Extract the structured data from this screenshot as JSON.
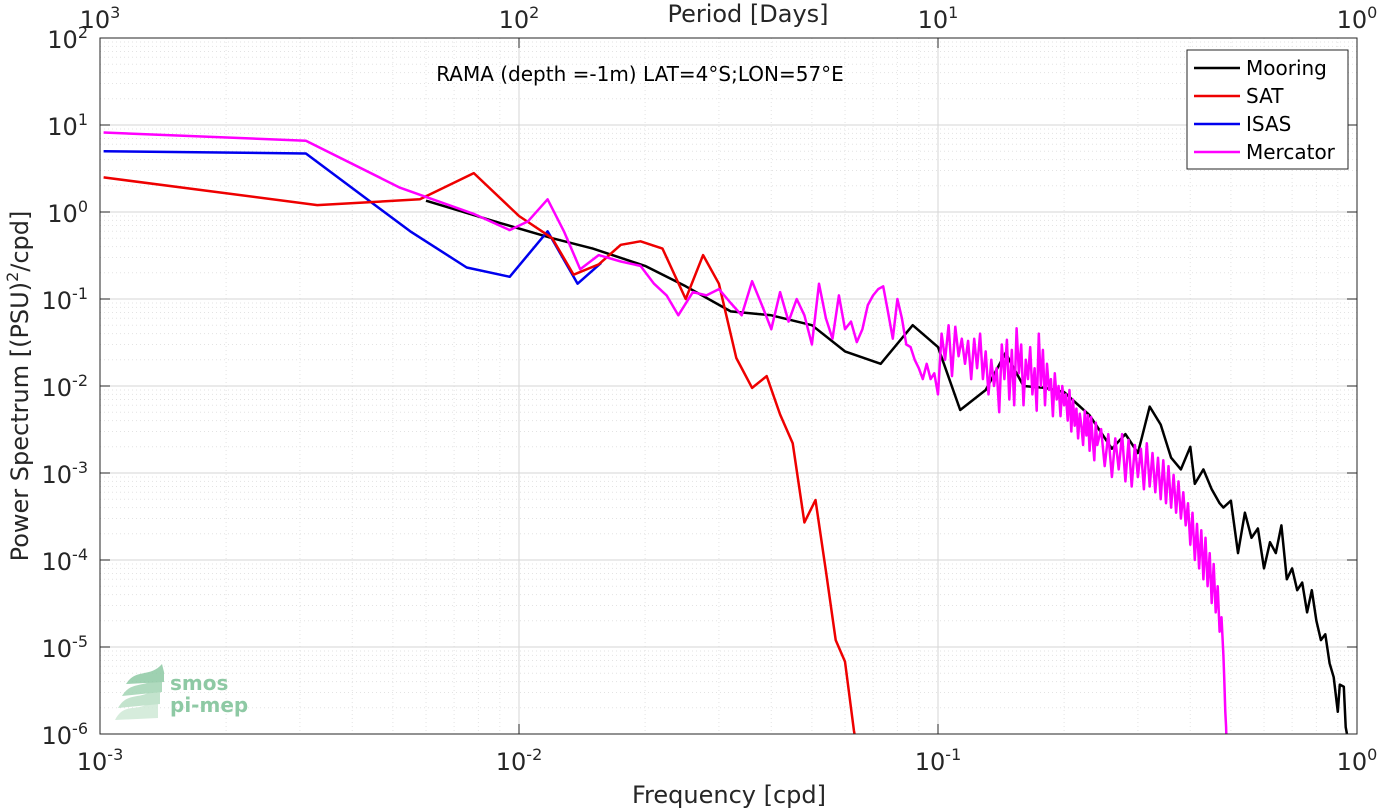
{
  "chart_data": {
    "type": "line",
    "title": "RAMA (depth =-1m) LAT=4°S;LON=57°E",
    "xlabel": "Frequency [cpd]",
    "ylabel_pre": "Power Spectrum [(PSU)",
    "ylabel_sup": "2",
    "ylabel_post": "/cpd]",
    "top_xlabel": "Period [Days]",
    "x_scale": "log",
    "y_scale": "log",
    "xlim": [
      0.001,
      1
    ],
    "ylim": [
      1e-06,
      100
    ],
    "grid": true,
    "legend_placement": "top-right",
    "x_ticks": [
      {
        "value": 0.001,
        "base": "10",
        "exp": "-3"
      },
      {
        "value": 0.01,
        "base": "10",
        "exp": "-2"
      },
      {
        "value": 0.1,
        "base": "10",
        "exp": "-1"
      },
      {
        "value": 1,
        "base": "10",
        "exp": "0"
      }
    ],
    "top_ticks": [
      {
        "value": 0.001,
        "base": "10",
        "exp": "3"
      },
      {
        "value": 0.01,
        "base": "10",
        "exp": "2"
      },
      {
        "value": 0.1,
        "base": "10",
        "exp": "1"
      },
      {
        "value": 1,
        "base": "10",
        "exp": "0"
      }
    ],
    "y_ticks": [
      {
        "value": 1e-06,
        "base": "10",
        "exp": "-6"
      },
      {
        "value": 1e-05,
        "base": "10",
        "exp": "-5"
      },
      {
        "value": 0.0001,
        "base": "10",
        "exp": "-4"
      },
      {
        "value": 0.001,
        "base": "10",
        "exp": "-3"
      },
      {
        "value": 0.01,
        "base": "10",
        "exp": "-2"
      },
      {
        "value": 0.1,
        "base": "10",
        "exp": "-1"
      },
      {
        "value": 1,
        "base": "10",
        "exp": "0"
      },
      {
        "value": 10,
        "base": "10",
        "exp": "1"
      },
      {
        "value": 100,
        "base": "10",
        "exp": "2"
      }
    ],
    "series": [
      {
        "name": "Mooring",
        "color": "#000000",
        "points": [
          [
            0.006,
            1.35
          ],
          [
            0.009,
            0.75
          ],
          [
            0.012,
            0.5
          ],
          [
            0.015,
            0.38
          ],
          [
            0.02,
            0.24
          ],
          [
            0.025,
            0.14
          ],
          [
            0.032,
            0.072
          ],
          [
            0.04,
            0.065
          ],
          [
            0.05,
            0.05
          ],
          [
            0.06,
            0.025
          ],
          [
            0.073,
            0.018
          ],
          [
            0.087,
            0.05
          ],
          [
            0.1,
            0.028
          ],
          [
            0.113,
            0.0053
          ],
          [
            0.13,
            0.009
          ],
          [
            0.145,
            0.024
          ],
          [
            0.16,
            0.01
          ],
          [
            0.18,
            0.0095
          ],
          [
            0.2,
            0.0085
          ],
          [
            0.23,
            0.0046
          ],
          [
            0.26,
            0.0019
          ],
          [
            0.28,
            0.0028
          ],
          [
            0.3,
            0.0017
          ],
          [
            0.32,
            0.0058
          ],
          [
            0.34,
            0.0036
          ],
          [
            0.36,
            0.0015
          ],
          [
            0.38,
            0.0011
          ],
          [
            0.4,
            0.002
          ],
          [
            0.41,
            0.00075
          ],
          [
            0.43,
            0.0011
          ],
          [
            0.45,
            0.00065
          ],
          [
            0.47,
            0.00045
          ],
          [
            0.48,
            0.0004
          ],
          [
            0.5,
            0.00048
          ],
          [
            0.52,
            0.00012
          ],
          [
            0.54,
            0.00035
          ],
          [
            0.56,
            0.00018
          ],
          [
            0.58,
            0.00023
          ],
          [
            0.6,
            8e-05
          ],
          [
            0.62,
            0.00016
          ],
          [
            0.64,
            0.00012
          ],
          [
            0.66,
            0.00025
          ],
          [
            0.68,
            6e-05
          ],
          [
            0.7,
            8e-05
          ],
          [
            0.72,
            4.5e-05
          ],
          [
            0.74,
            5.5e-05
          ],
          [
            0.76,
            2.5e-05
          ],
          [
            0.78,
            4.5e-05
          ],
          [
            0.8,
            2e-05
          ],
          [
            0.82,
            1.2e-05
          ],
          [
            0.84,
            1.4e-05
          ],
          [
            0.86,
            6.5e-06
          ],
          [
            0.88,
            4.5e-06
          ],
          [
            0.9,
            1.8e-06
          ],
          [
            0.91,
            3.7e-06
          ],
          [
            0.93,
            3.5e-06
          ],
          [
            0.94,
            1.2e-06
          ],
          [
            0.95,
            9e-07
          ]
        ]
      },
      {
        "name": "SAT",
        "color": "#ee0000",
        "points": [
          [
            0.00102,
            2.5
          ],
          [
            0.0033,
            1.2
          ],
          [
            0.0058,
            1.4
          ],
          [
            0.0078,
            2.8
          ],
          [
            0.01,
            0.9
          ],
          [
            0.012,
            0.5
          ],
          [
            0.0135,
            0.19
          ],
          [
            0.0155,
            0.25
          ],
          [
            0.0175,
            0.42
          ],
          [
            0.0195,
            0.46
          ],
          [
            0.022,
            0.38
          ],
          [
            0.025,
            0.1
          ],
          [
            0.0275,
            0.32
          ],
          [
            0.03,
            0.15
          ],
          [
            0.033,
            0.021
          ],
          [
            0.036,
            0.0095
          ],
          [
            0.039,
            0.013
          ],
          [
            0.042,
            0.0047
          ],
          [
            0.045,
            0.0022
          ],
          [
            0.048,
            0.00027
          ],
          [
            0.051,
            0.00049
          ],
          [
            0.054,
            7.5e-05
          ],
          [
            0.057,
            1.2e-05
          ],
          [
            0.06,
            6.8e-06
          ],
          [
            0.063,
            1.1e-06
          ],
          [
            0.064,
            7e-07
          ]
        ]
      },
      {
        "name": "ISAS",
        "color": "#0000ee",
        "points": [
          [
            0.00102,
            5.0
          ],
          [
            0.0031,
            4.7
          ],
          [
            0.0055,
            0.6
          ],
          [
            0.0075,
            0.23
          ],
          [
            0.0095,
            0.18
          ],
          [
            0.0117,
            0.6
          ],
          [
            0.0138,
            0.15
          ],
          [
            0.0157,
            0.26
          ]
        ]
      },
      {
        "name": "Mercator",
        "color": "#ff00ff",
        "points": [
          [
            0.00102,
            8.2
          ],
          [
            0.0031,
            6.6
          ],
          [
            0.0052,
            1.9
          ],
          [
            0.0078,
            0.95
          ],
          [
            0.0095,
            0.62
          ],
          [
            0.0105,
            0.78
          ],
          [
            0.0117,
            1.4
          ],
          [
            0.0128,
            0.6
          ],
          [
            0.014,
            0.22
          ],
          [
            0.0155,
            0.32
          ],
          [
            0.0175,
            0.27
          ],
          [
            0.0195,
            0.24
          ],
          [
            0.021,
            0.15
          ],
          [
            0.0225,
            0.11
          ],
          [
            0.024,
            0.065
          ],
          [
            0.026,
            0.12
          ],
          [
            0.028,
            0.11
          ],
          [
            0.03,
            0.13
          ],
          [
            0.032,
            0.09
          ],
          [
            0.034,
            0.065
          ],
          [
            0.036,
            0.16
          ],
          [
            0.038,
            0.085
          ],
          [
            0.04,
            0.045
          ],
          [
            0.042,
            0.12
          ],
          [
            0.044,
            0.055
          ],
          [
            0.046,
            0.1
          ],
          [
            0.048,
            0.065
          ],
          [
            0.05,
            0.03
          ],
          [
            0.052,
            0.15
          ],
          [
            0.054,
            0.06
          ],
          [
            0.056,
            0.035
          ],
          [
            0.058,
            0.11
          ],
          [
            0.06,
            0.045
          ],
          [
            0.062,
            0.055
          ],
          [
            0.064,
            0.032
          ],
          [
            0.066,
            0.045
          ],
          [
            0.068,
            0.085
          ],
          [
            0.07,
            0.11
          ],
          [
            0.072,
            0.13
          ],
          [
            0.074,
            0.14
          ],
          [
            0.076,
            0.07
          ],
          [
            0.078,
            0.035
          ],
          [
            0.08,
            0.1
          ],
          [
            0.082,
            0.06
          ],
          [
            0.084,
            0.03
          ],
          [
            0.086,
            0.028
          ],
          [
            0.088,
            0.02
          ],
          [
            0.09,
            0.016
          ],
          [
            0.092,
            0.012
          ],
          [
            0.094,
            0.018
          ],
          [
            0.096,
            0.012
          ],
          [
            0.098,
            0.014
          ],
          [
            0.1,
            0.008
          ],
          [
            0.102,
            0.04
          ],
          [
            0.104,
            0.02
          ],
          [
            0.106,
            0.05
          ],
          [
            0.108,
            0.013
          ],
          [
            0.11,
            0.048
          ],
          [
            0.112,
            0.022
          ],
          [
            0.114,
            0.035
          ],
          [
            0.116,
            0.018
          ],
          [
            0.118,
            0.033
          ],
          [
            0.12,
            0.012
          ],
          [
            0.122,
            0.035
          ],
          [
            0.124,
            0.016
          ],
          [
            0.126,
            0.04
          ],
          [
            0.128,
            0.012
          ],
          [
            0.13,
            0.025
          ],
          [
            0.132,
            0.008
          ],
          [
            0.134,
            0.02
          ],
          [
            0.136,
            0.01
          ],
          [
            0.138,
            0.016
          ],
          [
            0.14,
            0.005
          ],
          [
            0.142,
            0.03
          ],
          [
            0.144,
            0.012
          ],
          [
            0.146,
            0.034
          ],
          [
            0.148,
            0.007
          ],
          [
            0.15,
            0.026
          ],
          [
            0.152,
            0.006
          ],
          [
            0.154,
            0.046
          ],
          [
            0.156,
            0.014
          ],
          [
            0.158,
            0.03
          ],
          [
            0.16,
            0.006
          ],
          [
            0.162,
            0.02
          ],
          [
            0.164,
            0.012
          ],
          [
            0.166,
            0.028
          ],
          [
            0.168,
            0.008
          ],
          [
            0.17,
            0.016
          ],
          [
            0.172,
            0.0052
          ],
          [
            0.174,
            0.04
          ],
          [
            0.176,
            0.01
          ],
          [
            0.178,
            0.026
          ],
          [
            0.18,
            0.006
          ],
          [
            0.182,
            0.018
          ],
          [
            0.184,
            0.009
          ],
          [
            0.186,
            0.012
          ],
          [
            0.188,
            0.0045
          ],
          [
            0.19,
            0.014
          ],
          [
            0.192,
            0.007
          ],
          [
            0.194,
            0.01
          ],
          [
            0.196,
            0.0045
          ],
          [
            0.198,
            0.01
          ],
          [
            0.2,
            0.006
          ],
          [
            0.202,
            0.008
          ],
          [
            0.204,
            0.004
          ],
          [
            0.206,
            0.009
          ],
          [
            0.208,
            0.003
          ],
          [
            0.21,
            0.007
          ],
          [
            0.212,
            0.0035
          ],
          [
            0.214,
            0.0055
          ],
          [
            0.216,
            0.0025
          ],
          [
            0.218,
            0.0048
          ],
          [
            0.22,
            0.0034
          ],
          [
            0.222,
            0.0021
          ],
          [
            0.224,
            0.0052
          ],
          [
            0.226,
            0.0027
          ],
          [
            0.228,
            0.0046
          ],
          [
            0.23,
            0.0018
          ],
          [
            0.232,
            0.0044
          ],
          [
            0.234,
            0.0024
          ],
          [
            0.236,
            0.0014
          ],
          [
            0.238,
            0.0038
          ],
          [
            0.24,
            0.0021
          ],
          [
            0.245,
            0.0032
          ],
          [
            0.25,
            0.0012
          ],
          [
            0.255,
            0.0028
          ],
          [
            0.26,
            0.0009
          ],
          [
            0.265,
            0.0025
          ],
          [
            0.27,
            0.0011
          ],
          [
            0.275,
            0.0028
          ],
          [
            0.28,
            0.0008
          ],
          [
            0.285,
            0.0024
          ],
          [
            0.29,
            0.0007
          ],
          [
            0.295,
            0.0021
          ],
          [
            0.3,
            0.0009
          ],
          [
            0.305,
            0.0019
          ],
          [
            0.31,
            0.00065
          ],
          [
            0.315,
            0.0022
          ],
          [
            0.32,
            0.0007
          ],
          [
            0.325,
            0.0017
          ],
          [
            0.33,
            0.0006
          ],
          [
            0.335,
            0.0015
          ],
          [
            0.34,
            0.0005
          ],
          [
            0.345,
            0.0014
          ],
          [
            0.35,
            0.00045
          ],
          [
            0.355,
            0.0012
          ],
          [
            0.36,
            0.0004
          ],
          [
            0.365,
            0.00095
          ],
          [
            0.37,
            0.00035
          ],
          [
            0.375,
            0.0008
          ],
          [
            0.38,
            0.0003
          ],
          [
            0.385,
            0.0006
          ],
          [
            0.39,
            0.00025
          ],
          [
            0.395,
            0.00045
          ],
          [
            0.4,
            0.00015
          ],
          [
            0.405,
            0.00035
          ],
          [
            0.41,
            0.0001
          ],
          [
            0.415,
            0.00026
          ],
          [
            0.42,
            8e-05
          ],
          [
            0.425,
            0.00022
          ],
          [
            0.43,
            6e-05
          ],
          [
            0.435,
            0.00018
          ],
          [
            0.44,
            5e-05
          ],
          [
            0.445,
            0.00012
          ],
          [
            0.45,
            3.2e-05
          ],
          [
            0.455,
            9e-05
          ],
          [
            0.46,
            2.5e-05
          ],
          [
            0.465,
            5e-05
          ],
          [
            0.47,
            1.5e-05
          ],
          [
            0.475,
            2.2e-05
          ],
          [
            0.48,
            8e-06
          ],
          [
            0.482,
            4.5e-06
          ],
          [
            0.485,
            1.8e-06
          ],
          [
            0.487,
            1.2e-06
          ],
          [
            0.489,
            6e-07
          ]
        ]
      }
    ]
  },
  "logo": {
    "line1": "smos",
    "line2": "pi-mep",
    "color": "#8ec9a4"
  }
}
